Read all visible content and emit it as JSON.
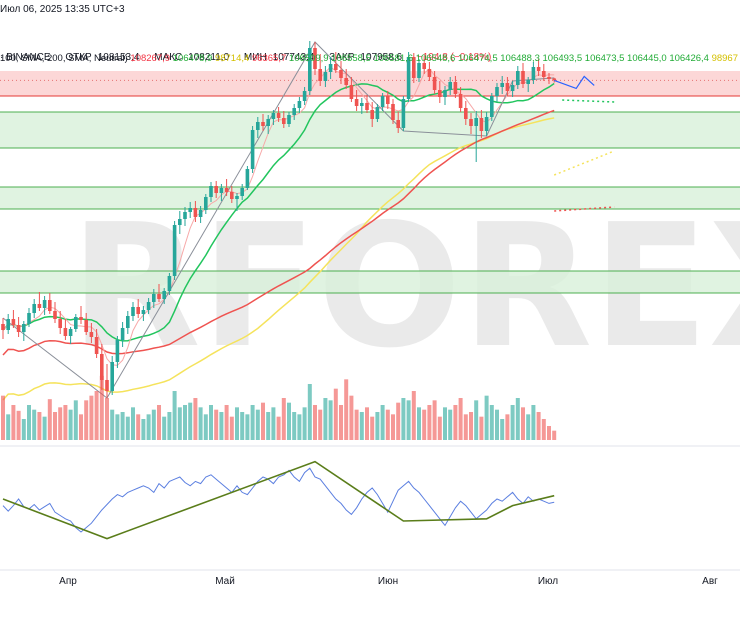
{
  "header": {
    "date_line": "Июл 06, 2025 13:35 UTC+3",
    "source": "BINANCE",
    "ohlc": {
      "open_label": "ОТКР",
      "open": "108153,4",
      "high_label": "МАКС",
      "high": "108211,0",
      "low_label": "МИН",
      "low": "107743,4",
      "close_label": "ЗАКР",
      "close": "107958,6",
      "change": "−194,8 (−0,18%)"
    },
    "indicator_line": "100, SMA, 200, SMA, Neutral)",
    "indicator_values": [
      {
        "text": "108267,9",
        "color": "#f23645"
      },
      {
        "text": "106478,9",
        "color": "#22ab37"
      },
      {
        "text": "98714,4",
        "color": "#d4c000"
      },
      {
        "text": "96365,7",
        "color": "#f23645"
      },
      {
        "text": "106509,9",
        "color": "#22ab37"
      },
      {
        "text": "106558,5",
        "color": "#22ab37"
      },
      {
        "text": "106581,6",
        "color": "#22ab37"
      },
      {
        "text": "106548,6",
        "color": "#22ab37"
      },
      {
        "text": "106474,5",
        "color": "#22ab37"
      },
      {
        "text": "106488,3",
        "color": "#22ab37"
      },
      {
        "text": "106493,5",
        "color": "#22ab37"
      },
      {
        "text": "106473,5",
        "color": "#22ab37"
      },
      {
        "text": "106445,0",
        "color": "#22ab37"
      },
      {
        "text": "106426,4",
        "color": "#22ab37"
      },
      {
        "text": "98967",
        "color": "#d4c000"
      }
    ]
  },
  "watermark": "RFOREX",
  "colors": {
    "up": "#26a69a",
    "down": "#ef5350",
    "sma_fast": "#f7a8a8",
    "sma_mid": "#22c55e",
    "sma_200": "#ef5350",
    "sma_yellow": "#f5e35c",
    "zone_red": "#fcd7d7",
    "zone_green": "#d8f0da",
    "level_green": "#4caf50",
    "level_red": "#e53935",
    "trend": "#6b8e23",
    "osc": "#5b7fe0",
    "projection": "#2962ff"
  },
  "chart_data": {
    "type": "candlestick",
    "symbol": "BINANCE",
    "x_labels": [
      "Апр",
      "Май",
      "Июн",
      "Июл",
      "Авг"
    ],
    "price_range": [
      72000,
      112000
    ],
    "levels": [
      106400,
      104800,
      101200,
      97300,
      95100,
      88900,
      86700
    ],
    "red_zone": [
      106400,
      108900
    ],
    "green_zones": [
      [
        101200,
        104800
      ],
      [
        95100,
        97300
      ],
      [
        86700,
        88900
      ]
    ],
    "candles": [
      [
        83600,
        84200,
        82100,
        83000
      ],
      [
        83000,
        84600,
        82600,
        84100
      ],
      [
        84100,
        85000,
        83200,
        83500
      ],
      [
        83500,
        84300,
        82300,
        82800
      ],
      [
        82800,
        83900,
        81900,
        83600
      ],
      [
        83600,
        85200,
        83300,
        84700
      ],
      [
        84700,
        86100,
        84200,
        85600
      ],
      [
        85600,
        86800,
        84900,
        85200
      ],
      [
        85200,
        86400,
        84500,
        86000
      ],
      [
        86000,
        86700,
        84600,
        84900
      ],
      [
        84900,
        85800,
        83700,
        84100
      ],
      [
        84100,
        84900,
        82600,
        83200
      ],
      [
        83200,
        84100,
        82000,
        82400
      ],
      [
        82400,
        83300,
        81600,
        83100
      ],
      [
        83100,
        84600,
        82800,
        84300
      ],
      [
        84300,
        85400,
        83600,
        84000
      ],
      [
        84000,
        84700,
        82500,
        82800
      ],
      [
        82800,
        83700,
        81700,
        82300
      ],
      [
        82300,
        83100,
        80200,
        80600
      ],
      [
        80600,
        81600,
        77000,
        78000
      ],
      [
        78000,
        79600,
        76200,
        76900
      ],
      [
        76900,
        80400,
        76500,
        79800
      ],
      [
        79800,
        82400,
        79200,
        82000
      ],
      [
        82000,
        83800,
        81300,
        83200
      ],
      [
        83200,
        84900,
        82600,
        84400
      ],
      [
        84400,
        85800,
        83900,
        85300
      ],
      [
        85300,
        86100,
        84200,
        84600
      ],
      [
        84600,
        85400,
        83900,
        85000
      ],
      [
        85000,
        86200,
        84600,
        85800
      ],
      [
        85800,
        87100,
        85200,
        86600
      ],
      [
        86600,
        87600,
        85800,
        86100
      ],
      [
        86100,
        87200,
        85600,
        86900
      ],
      [
        86900,
        88700,
        86500,
        88400
      ],
      [
        88400,
        93900,
        88000,
        93500
      ],
      [
        93500,
        94900,
        92600,
        94100
      ],
      [
        94100,
        95300,
        93400,
        94800
      ],
      [
        94800,
        95800,
        94200,
        95200
      ],
      [
        95200,
        95900,
        93800,
        94300
      ],
      [
        94300,
        95400,
        93700,
        95000
      ],
      [
        95000,
        96600,
        94600,
        96300
      ],
      [
        96300,
        97800,
        95800,
        97400
      ],
      [
        97400,
        97900,
        96200,
        96700
      ],
      [
        96700,
        97600,
        95900,
        97200
      ],
      [
        97200,
        98100,
        96400,
        96800
      ],
      [
        96800,
        97400,
        95700,
        96100
      ],
      [
        96100,
        96700,
        94900,
        96400
      ],
      [
        96400,
        97600,
        96000,
        97200
      ],
      [
        97200,
        99400,
        97000,
        99100
      ],
      [
        99100,
        103400,
        98700,
        103000
      ],
      [
        103000,
        104300,
        102200,
        103800
      ],
      [
        103800,
        104600,
        102900,
        103400
      ],
      [
        103400,
        104500,
        102600,
        104100
      ],
      [
        104100,
        105000,
        103500,
        104700
      ],
      [
        104700,
        105300,
        103800,
        104200
      ],
      [
        104200,
        104900,
        103200,
        103600
      ],
      [
        103600,
        104800,
        103300,
        104500
      ],
      [
        104500,
        105600,
        104000,
        105200
      ],
      [
        105200,
        106300,
        104700,
        105900
      ],
      [
        105900,
        107300,
        105500,
        106900
      ],
      [
        106900,
        111900,
        106500,
        111200
      ],
      [
        111200,
        111800,
        108500,
        109100
      ],
      [
        109100,
        110600,
        107400,
        107900
      ],
      [
        107900,
        109400,
        107300,
        108800
      ],
      [
        108800,
        110300,
        108100,
        109600
      ],
      [
        109600,
        110800,
        108700,
        109000
      ],
      [
        109000,
        109900,
        107600,
        108200
      ],
      [
        108200,
        109100,
        107100,
        107500
      ],
      [
        107500,
        108300,
        105800,
        106100
      ],
      [
        106100,
        107000,
        104900,
        105400
      ],
      [
        105400,
        106200,
        104600,
        105700
      ],
      [
        105700,
        106500,
        104700,
        105000
      ],
      [
        105000,
        105800,
        103300,
        104100
      ],
      [
        104100,
        105600,
        103800,
        105300
      ],
      [
        105300,
        106700,
        104900,
        106400
      ],
      [
        106400,
        106900,
        105100,
        105600
      ],
      [
        105600,
        106100,
        103600,
        104000
      ],
      [
        104000,
        104800,
        102700,
        103200
      ],
      [
        103200,
        106400,
        102900,
        106100
      ],
      [
        106100,
        110800,
        105800,
        110300
      ],
      [
        110300,
        110700,
        107700,
        108200
      ],
      [
        108200,
        110100,
        107800,
        109700
      ],
      [
        109700,
        110400,
        108600,
        109100
      ],
      [
        109100,
        109800,
        107900,
        108300
      ],
      [
        108300,
        108900,
        106600,
        107000
      ],
      [
        107000,
        107900,
        105700,
        106300
      ],
      [
        106300,
        107400,
        105500,
        107000
      ],
      [
        107000,
        108300,
        106500,
        107800
      ],
      [
        107800,
        108400,
        106200,
        106600
      ],
      [
        106600,
        107300,
        104800,
        105200
      ],
      [
        105200,
        105900,
        103500,
        104100
      ],
      [
        104100,
        104700,
        102600,
        103400
      ],
      [
        103400,
        104900,
        99800,
        104200
      ],
      [
        104200,
        105000,
        102200,
        102900
      ],
      [
        102900,
        104800,
        102400,
        104300
      ],
      [
        104300,
        106700,
        103900,
        106400
      ],
      [
        106400,
        107700,
        105800,
        107300
      ],
      [
        107300,
        108400,
        106600,
        107700
      ],
      [
        107700,
        108300,
        106400,
        106900
      ],
      [
        106900,
        107900,
        106300,
        107500
      ],
      [
        107500,
        109400,
        107100,
        108900
      ],
      [
        108900,
        109700,
        107200,
        107600
      ],
      [
        107600,
        108300,
        106800,
        108000
      ],
      [
        108000,
        109800,
        107600,
        109300
      ],
      [
        109300,
        110100,
        108400,
        108900
      ],
      [
        108900,
        109600,
        107900,
        108300
      ],
      [
        108300,
        108700,
        107600,
        108100
      ],
      [
        108153.4,
        108211.0,
        107743.4,
        107958.6
      ]
    ],
    "volume": [
      38,
      22,
      30,
      25,
      18,
      30,
      26,
      24,
      20,
      35,
      24,
      28,
      30,
      26,
      34,
      22,
      34,
      38,
      42,
      55,
      36,
      26,
      22,
      24,
      20,
      28,
      22,
      18,
      22,
      26,
      30,
      20,
      24,
      42,
      28,
      30,
      32,
      36,
      28,
      22,
      30,
      26,
      24,
      30,
      20,
      28,
      24,
      22,
      30,
      26,
      32,
      24,
      28,
      20,
      36,
      32,
      24,
      22,
      28,
      48,
      30,
      26,
      36,
      34,
      44,
      30,
      52,
      38,
      26,
      24,
      28,
      20,
      24,
      30,
      26,
      22,
      32,
      36,
      34,
      42,
      28,
      26,
      30,
      34,
      20,
      28,
      26,
      30,
      36,
      22,
      24,
      34,
      20,
      38,
      30,
      26,
      18,
      22,
      30,
      36,
      28,
      22,
      30,
      24,
      18,
      12,
      8
    ],
    "oscillator": [
      54,
      49,
      54,
      60,
      53,
      51,
      55,
      50,
      53,
      56,
      48,
      45,
      42,
      40,
      34,
      30,
      34,
      38,
      44,
      50,
      55,
      60,
      64,
      62,
      66,
      68,
      70,
      72,
      70,
      66,
      74,
      70,
      76,
      78,
      80,
      75,
      72,
      76,
      74,
      80,
      82,
      78,
      74,
      70,
      66,
      72,
      66,
      64,
      70,
      76,
      80,
      78,
      74,
      80,
      82,
      86,
      80,
      76,
      84,
      88,
      80,
      78,
      72,
      66,
      60,
      56,
      50,
      46,
      52,
      60,
      66,
      70,
      64,
      56,
      48,
      58,
      68,
      72,
      76,
      70,
      66,
      60,
      54,
      48,
      42,
      36,
      44,
      52,
      58,
      54,
      48,
      42,
      46,
      50,
      56,
      60,
      58,
      62,
      66,
      60,
      56,
      62,
      58,
      60,
      58,
      56,
      57
    ]
  }
}
